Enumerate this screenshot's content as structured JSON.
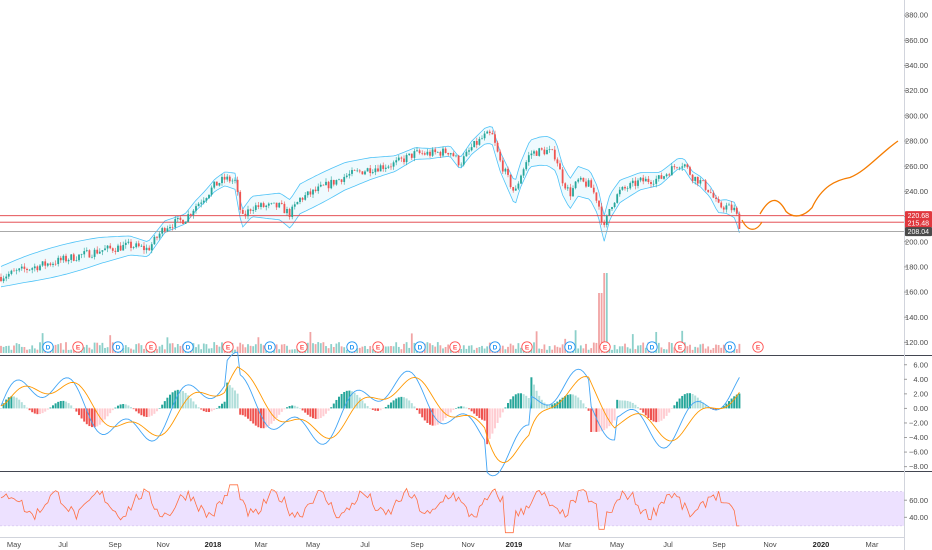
{
  "main_pane": {
    "price_ticks": [
      "380.00",
      "360.00",
      "340.00",
      "320.00",
      "300.00",
      "280.00",
      "260.00",
      "240.00",
      "220.00",
      "200.00",
      "180.00",
      "160.00",
      "140.00",
      "120.00"
    ],
    "price_range": [
      110,
      392
    ],
    "price_tags": [
      {
        "label": "220.68",
        "value": 220.68,
        "color": "#e0383e"
      },
      {
        "label": "215.48",
        "value": 215.48,
        "color": "#e0383e"
      },
      {
        "label": "208.04",
        "value": 208.04,
        "color": "#4a4a4a"
      }
    ],
    "hlines": [
      {
        "value": 220.68,
        "color": "#e0383e"
      },
      {
        "value": 215.48,
        "color": "#e0383e"
      },
      {
        "value": 208.04,
        "color": "#9e9e9e"
      }
    ],
    "events": [
      "D",
      "E",
      "D",
      "E",
      "D",
      "E",
      "D",
      "E",
      "D",
      "E",
      "D",
      "E",
      "D",
      "E",
      "D",
      "E",
      "D",
      "E",
      "D",
      "E",
      "D",
      "E"
    ],
    "colors": {
      "up": "#26a69a",
      "down": "#ef5350",
      "band": "#4fc3f7",
      "band_fill": "#e1f5fe",
      "projection": "#f57c00"
    }
  },
  "macd_pane": {
    "ticks": [
      "6.00",
      "4.00",
      "2.00",
      "0.00",
      "−2.00",
      "−4.00",
      "−6.00",
      "−8.00"
    ],
    "range": [
      -8.6,
      7.2
    ]
  },
  "rsi_pane": {
    "ticks": [
      "60.00",
      "40.00"
    ],
    "range": [
      17,
      93
    ],
    "band": [
      30,
      70
    ],
    "band_color": "#ede1ff",
    "line_color": "#ff7043"
  },
  "time_axis": {
    "labels": [
      {
        "text": "May",
        "bold": false
      },
      {
        "text": "Jul",
        "bold": false
      },
      {
        "text": "Sep",
        "bold": false
      },
      {
        "text": "Nov",
        "bold": false
      },
      {
        "text": "2018",
        "bold": true
      },
      {
        "text": "Mar",
        "bold": false
      },
      {
        "text": "May",
        "bold": false
      },
      {
        "text": "Jul",
        "bold": false
      },
      {
        "text": "Sep",
        "bold": false
      },
      {
        "text": "Nov",
        "bold": false
      },
      {
        "text": "2019",
        "bold": true
      },
      {
        "text": "Mar",
        "bold": false
      },
      {
        "text": "May",
        "bold": false
      },
      {
        "text": "Jul",
        "bold": false
      },
      {
        "text": "Sep",
        "bold": false
      },
      {
        "text": "Nov",
        "bold": false
      },
      {
        "text": "2020",
        "bold": true
      },
      {
        "text": "Mar",
        "bold": false
      }
    ]
  }
}
